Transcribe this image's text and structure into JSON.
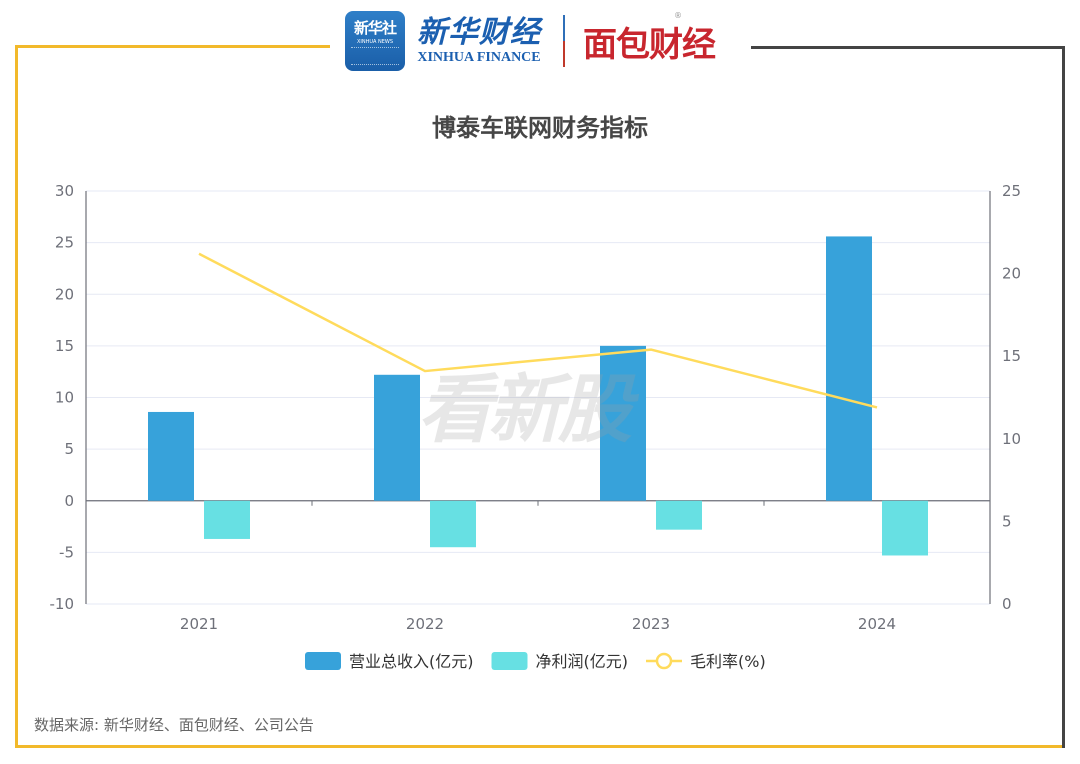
{
  "header": {
    "xinhua_badge_cn": "新华社",
    "xinhua_badge_en": "XINHUA NEWS",
    "xinhua_finance_cn": "新华财经",
    "xinhua_finance_en": "XINHUA FINANCE",
    "mianbao_cn": "面包财经",
    "mianbao_reg": "®"
  },
  "watermark": "看新股",
  "footer": {
    "source": "数据来源: 新华财经、面包财经、公司公告"
  },
  "colors": {
    "frame_accent": "#f2b92a",
    "frame_dark": "#444444",
    "revenue": "#37a2da",
    "net_profit": "#67e0e3",
    "gross_margin": "#ffdb5c"
  },
  "chart_data": {
    "type": "bar",
    "title": "博泰车联网财务指标",
    "categories": [
      "2021",
      "2022",
      "2023",
      "2024"
    ],
    "series": [
      {
        "name": "营业总收入(亿元)",
        "type": "bar",
        "axis": "left",
        "color": "#37a2da",
        "values": [
          8.6,
          12.2,
          15.0,
          25.6
        ]
      },
      {
        "name": "净利润(亿元)",
        "type": "bar",
        "axis": "left",
        "color": "#67e0e3",
        "values": [
          -3.7,
          -4.5,
          -2.8,
          -5.3
        ]
      },
      {
        "name": "毛利率(%)",
        "type": "line",
        "axis": "right",
        "color": "#ffdb5c",
        "values": [
          21.2,
          14.1,
          15.4,
          11.9
        ]
      }
    ],
    "xlabel": "",
    "ylabel": "",
    "ylim": [
      -10,
      30
    ],
    "y_ticks": [
      "30",
      "25",
      "20",
      "15",
      "10",
      "5",
      "0",
      "-5",
      "-10"
    ],
    "y2lim": [
      0,
      25
    ],
    "y2_ticks": [
      "25",
      "20",
      "15",
      "10",
      "5",
      "0"
    ],
    "grid": true,
    "legend_position": "bottom"
  }
}
